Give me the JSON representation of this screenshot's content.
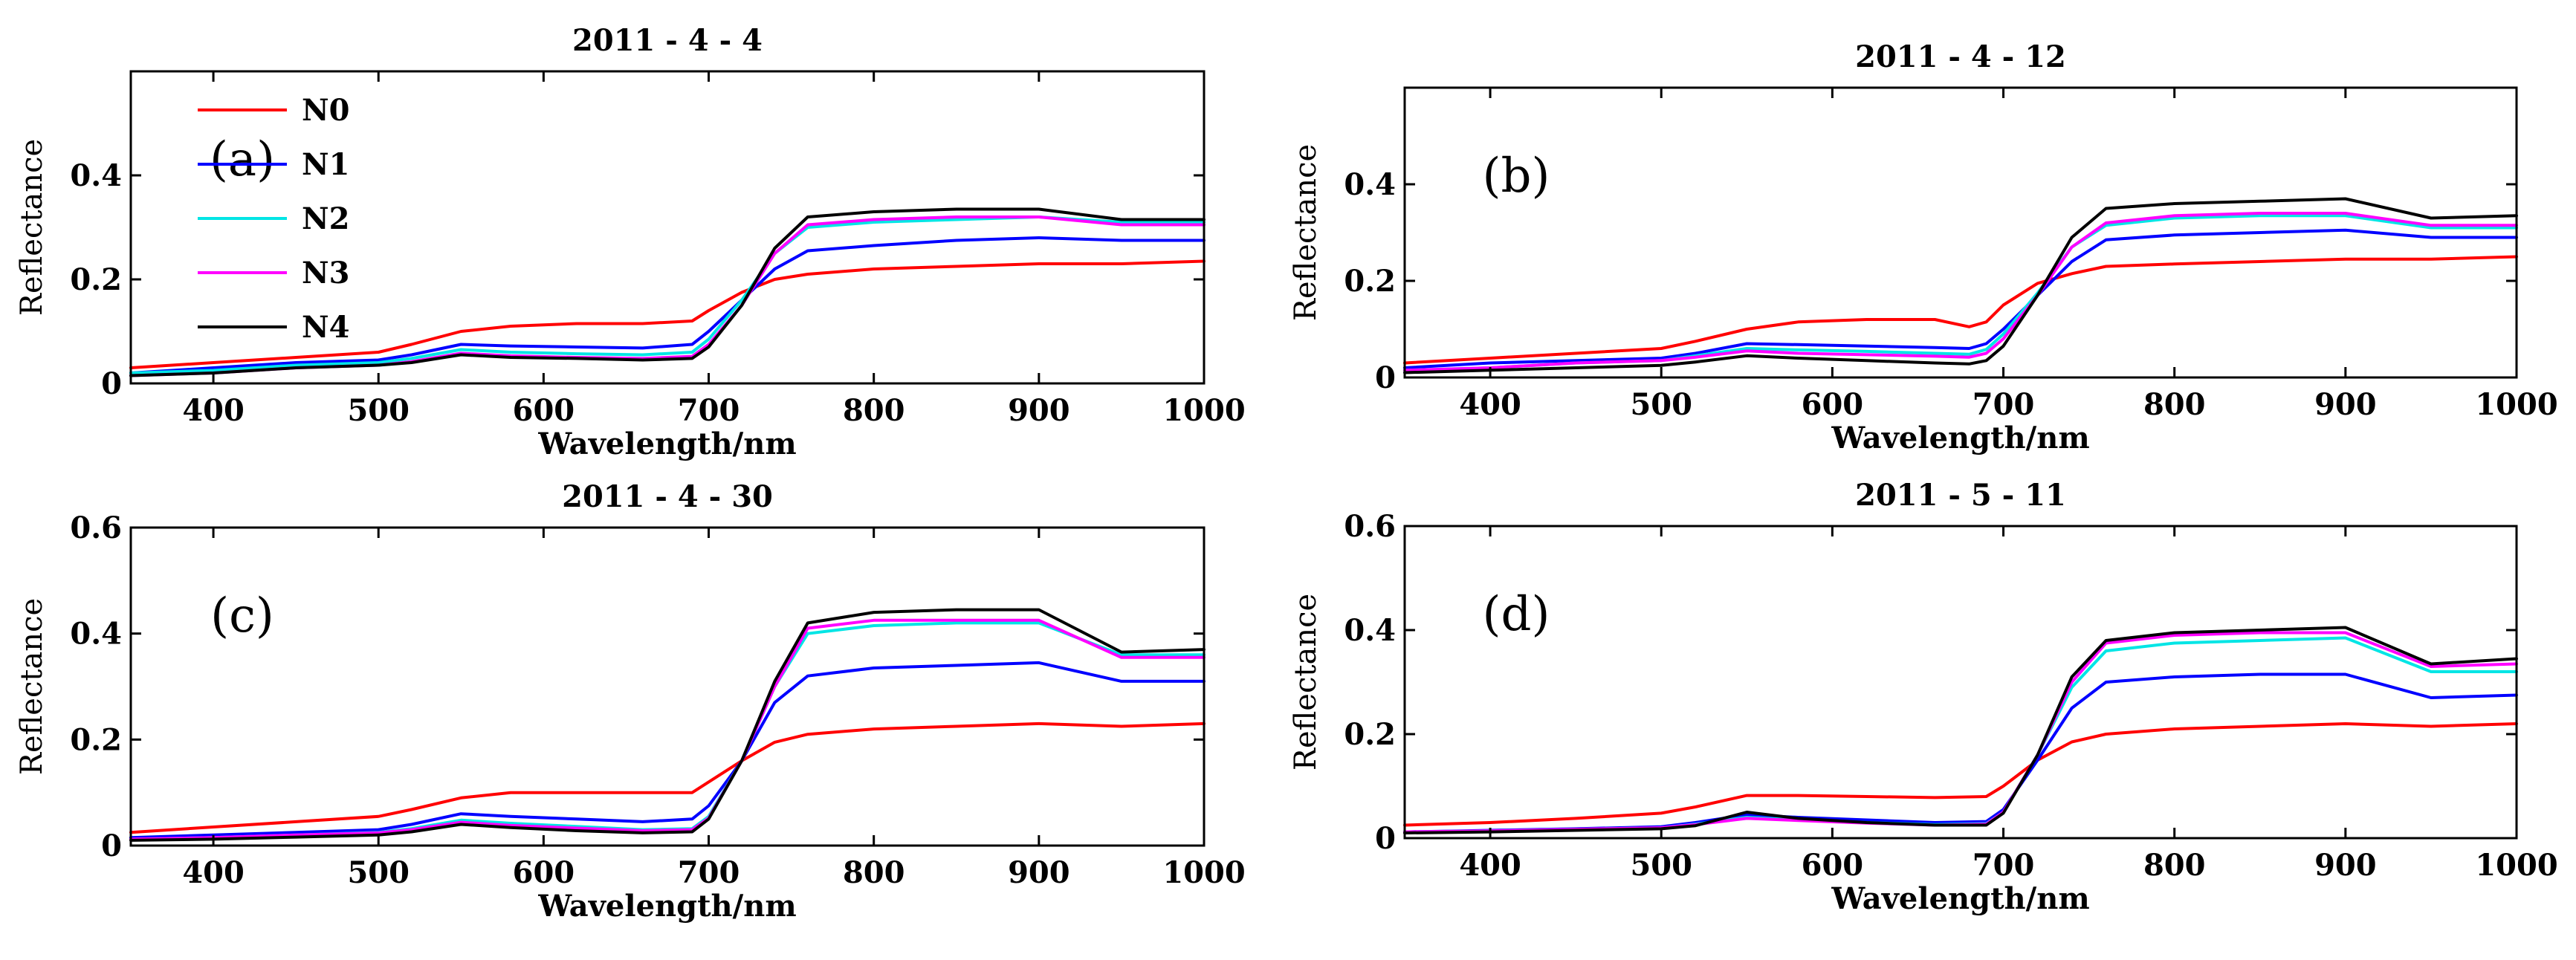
{
  "chart_data": [
    {
      "type": "line",
      "panel": "(a)",
      "title": "2011 - 4 - 4",
      "xlabel": "Wavelength/nm",
      "ylabel": "Reflectance",
      "xlim": [
        350,
        1000
      ],
      "ylim": [
        0,
        0.6
      ],
      "xticks": [
        400,
        500,
        600,
        700,
        800,
        900,
        1000
      ],
      "yticks": [
        0,
        0.2,
        0.4
      ],
      "ytick_labels": [
        "0",
        "0.2",
        "0.4"
      ],
      "legend": {
        "location": "top-left",
        "entries": [
          "N0",
          "N1",
          "N2",
          "N3",
          "N4"
        ]
      },
      "series": [
        {
          "name": "N0",
          "color": "#ff0000",
          "x": [
            350,
            400,
            450,
            500,
            520,
            550,
            580,
            620,
            660,
            690,
            700,
            720,
            740,
            760,
            800,
            850,
            900,
            950,
            1000
          ],
          "values": [
            0.03,
            0.04,
            0.05,
            0.06,
            0.075,
            0.1,
            0.11,
            0.115,
            0.115,
            0.12,
            0.14,
            0.175,
            0.2,
            0.21,
            0.22,
            0.225,
            0.23,
            0.23,
            0.235
          ]
        },
        {
          "name": "N1",
          "color": "#0000ff",
          "x": [
            350,
            400,
            450,
            500,
            520,
            550,
            580,
            620,
            660,
            690,
            700,
            720,
            740,
            760,
            800,
            850,
            900,
            950,
            1000
          ],
          "values": [
            0.02,
            0.03,
            0.04,
            0.045,
            0.055,
            0.075,
            0.072,
            0.07,
            0.068,
            0.075,
            0.1,
            0.16,
            0.22,
            0.255,
            0.265,
            0.275,
            0.28,
            0.275,
            0.275
          ]
        },
        {
          "name": "N2",
          "color": "#00e5e5",
          "x": [
            350,
            400,
            450,
            500,
            520,
            550,
            580,
            620,
            660,
            690,
            700,
            720,
            740,
            760,
            800,
            850,
            900,
            950,
            1000
          ],
          "values": [
            0.02,
            0.025,
            0.035,
            0.04,
            0.048,
            0.065,
            0.06,
            0.057,
            0.055,
            0.06,
            0.085,
            0.16,
            0.25,
            0.3,
            0.31,
            0.315,
            0.32,
            0.31,
            0.31
          ]
        },
        {
          "name": "N3",
          "color": "#ff00ff",
          "x": [
            350,
            400,
            450,
            500,
            520,
            550,
            580,
            620,
            660,
            690,
            700,
            720,
            740,
            760,
            800,
            850,
            900,
            950,
            1000
          ],
          "values": [
            0.015,
            0.02,
            0.03,
            0.035,
            0.042,
            0.058,
            0.053,
            0.05,
            0.048,
            0.052,
            0.075,
            0.15,
            0.25,
            0.305,
            0.315,
            0.32,
            0.32,
            0.305,
            0.305
          ]
        },
        {
          "name": "N4",
          "color": "#000000",
          "x": [
            350,
            400,
            450,
            500,
            520,
            550,
            580,
            620,
            660,
            690,
            700,
            720,
            740,
            760,
            800,
            850,
            900,
            950,
            1000
          ],
          "values": [
            0.015,
            0.02,
            0.03,
            0.035,
            0.04,
            0.055,
            0.05,
            0.048,
            0.045,
            0.048,
            0.07,
            0.15,
            0.26,
            0.32,
            0.33,
            0.335,
            0.335,
            0.315,
            0.315
          ]
        }
      ]
    },
    {
      "type": "line",
      "panel": "(b)",
      "title": "2011 - 4 - 12",
      "xlabel": "Wavelength/nm",
      "ylabel": "Reflectance",
      "xlim": [
        350,
        1000
      ],
      "ylim": [
        0,
        0.6
      ],
      "xticks": [
        400,
        500,
        600,
        700,
        800,
        900,
        1000
      ],
      "yticks": [
        0,
        0.2,
        0.4
      ],
      "ytick_labels": [
        "0",
        "0.2",
        "0.4"
      ],
      "series": [
        {
          "name": "N0",
          "color": "#ff0000",
          "x": [
            350,
            400,
            450,
            500,
            520,
            550,
            580,
            620,
            660,
            680,
            690,
            700,
            720,
            740,
            760,
            800,
            850,
            900,
            950,
            1000
          ],
          "values": [
            0.03,
            0.04,
            0.05,
            0.06,
            0.075,
            0.1,
            0.115,
            0.12,
            0.12,
            0.105,
            0.115,
            0.15,
            0.195,
            0.215,
            0.23,
            0.235,
            0.24,
            0.245,
            0.245,
            0.25
          ]
        },
        {
          "name": "N1",
          "color": "#0000ff",
          "x": [
            350,
            400,
            450,
            500,
            520,
            550,
            580,
            620,
            660,
            680,
            690,
            700,
            720,
            740,
            760,
            800,
            850,
            900,
            950,
            1000
          ],
          "values": [
            0.02,
            0.03,
            0.035,
            0.04,
            0.05,
            0.07,
            0.068,
            0.065,
            0.062,
            0.06,
            0.07,
            0.1,
            0.17,
            0.24,
            0.285,
            0.295,
            0.3,
            0.305,
            0.29,
            0.29
          ]
        },
        {
          "name": "N2",
          "color": "#00e5e5",
          "x": [
            350,
            400,
            450,
            500,
            520,
            550,
            580,
            620,
            660,
            680,
            690,
            700,
            720,
            740,
            760,
            800,
            850,
            900,
            950,
            1000
          ],
          "values": [
            0.015,
            0.02,
            0.03,
            0.035,
            0.045,
            0.06,
            0.057,
            0.054,
            0.05,
            0.048,
            0.058,
            0.09,
            0.175,
            0.27,
            0.315,
            0.33,
            0.335,
            0.335,
            0.31,
            0.31
          ]
        },
        {
          "name": "N3",
          "color": "#ff00ff",
          "x": [
            350,
            400,
            450,
            500,
            520,
            550,
            580,
            620,
            660,
            680,
            690,
            700,
            720,
            740,
            760,
            800,
            850,
            900,
            950,
            1000
          ],
          "values": [
            0.015,
            0.02,
            0.03,
            0.035,
            0.042,
            0.055,
            0.05,
            0.047,
            0.044,
            0.042,
            0.05,
            0.08,
            0.17,
            0.27,
            0.32,
            0.335,
            0.34,
            0.34,
            0.315,
            0.315
          ]
        },
        {
          "name": "N4",
          "color": "#000000",
          "x": [
            350,
            400,
            450,
            500,
            520,
            550,
            580,
            620,
            660,
            680,
            690,
            700,
            720,
            740,
            760,
            800,
            850,
            900,
            950,
            1000
          ],
          "values": [
            0.01,
            0.015,
            0.02,
            0.025,
            0.032,
            0.045,
            0.04,
            0.035,
            0.03,
            0.028,
            0.035,
            0.065,
            0.17,
            0.29,
            0.35,
            0.36,
            0.365,
            0.37,
            0.33,
            0.335
          ]
        }
      ]
    },
    {
      "type": "line",
      "panel": "(c)",
      "title": "2011 - 4 - 30",
      "xlabel": "Wavelength/nm",
      "ylabel": "Reflectance",
      "xlim": [
        350,
        1000
      ],
      "ylim": [
        0,
        0.6
      ],
      "xticks": [
        400,
        500,
        600,
        700,
        800,
        900,
        1000
      ],
      "yticks": [
        0,
        0.2,
        0.4,
        0.6
      ],
      "ytick_labels": [
        "0",
        "0.2",
        "0.4",
        "0.6"
      ],
      "series": [
        {
          "name": "N0",
          "color": "#ff0000",
          "x": [
            350,
            400,
            450,
            500,
            520,
            550,
            580,
            620,
            660,
            690,
            700,
            720,
            740,
            760,
            800,
            850,
            900,
            950,
            1000
          ],
          "values": [
            0.025,
            0.035,
            0.045,
            0.055,
            0.068,
            0.09,
            0.1,
            0.1,
            0.1,
            0.1,
            0.12,
            0.16,
            0.195,
            0.21,
            0.22,
            0.225,
            0.23,
            0.225,
            0.23
          ]
        },
        {
          "name": "N1",
          "color": "#0000ff",
          "x": [
            350,
            400,
            450,
            500,
            520,
            550,
            580,
            620,
            660,
            690,
            700,
            720,
            740,
            760,
            800,
            850,
            900,
            950,
            1000
          ],
          "values": [
            0.015,
            0.02,
            0.025,
            0.03,
            0.04,
            0.06,
            0.055,
            0.05,
            0.045,
            0.05,
            0.075,
            0.16,
            0.27,
            0.32,
            0.335,
            0.34,
            0.345,
            0.31,
            0.31
          ]
        },
        {
          "name": "N2",
          "color": "#00e5e5",
          "x": [
            350,
            400,
            450,
            500,
            520,
            550,
            580,
            620,
            660,
            690,
            700,
            720,
            740,
            760,
            800,
            850,
            900,
            950,
            1000
          ],
          "values": [
            0.012,
            0.015,
            0.02,
            0.025,
            0.032,
            0.048,
            0.042,
            0.036,
            0.03,
            0.032,
            0.055,
            0.16,
            0.3,
            0.4,
            0.415,
            0.42,
            0.42,
            0.36,
            0.36
          ]
        },
        {
          "name": "N3",
          "color": "#ff00ff",
          "x": [
            350,
            400,
            450,
            500,
            520,
            550,
            580,
            620,
            660,
            690,
            700,
            720,
            740,
            760,
            800,
            850,
            900,
            950,
            1000
          ],
          "values": [
            0.012,
            0.015,
            0.02,
            0.024,
            0.03,
            0.044,
            0.038,
            0.033,
            0.028,
            0.03,
            0.052,
            0.16,
            0.3,
            0.41,
            0.425,
            0.425,
            0.425,
            0.355,
            0.355
          ]
        },
        {
          "name": "N4",
          "color": "#000000",
          "x": [
            350,
            400,
            450,
            500,
            520,
            550,
            580,
            620,
            660,
            690,
            700,
            720,
            740,
            760,
            800,
            850,
            900,
            950,
            1000
          ],
          "values": [
            0.01,
            0.012,
            0.016,
            0.02,
            0.026,
            0.04,
            0.034,
            0.028,
            0.024,
            0.026,
            0.05,
            0.16,
            0.31,
            0.42,
            0.44,
            0.445,
            0.445,
            0.365,
            0.37
          ]
        }
      ]
    },
    {
      "type": "line",
      "panel": "(d)",
      "title": "2011 - 5 - 11",
      "xlabel": "Wavelength/nm",
      "ylabel": "Reflectance",
      "xlim": [
        350,
        1000
      ],
      "ylim": [
        0,
        0.6
      ],
      "xticks": [
        400,
        500,
        600,
        700,
        800,
        900,
        1000
      ],
      "yticks": [
        0,
        0.2,
        0.4,
        0.6
      ],
      "ytick_labels": [
        "0",
        "0.2",
        "0.4",
        "0.6"
      ],
      "series": [
        {
          "name": "N0",
          "color": "#ff0000",
          "x": [
            350,
            400,
            450,
            500,
            520,
            550,
            580,
            620,
            660,
            690,
            700,
            720,
            740,
            760,
            800,
            850,
            900,
            950,
            1000
          ],
          "values": [
            0.025,
            0.03,
            0.038,
            0.048,
            0.06,
            0.082,
            0.082,
            0.08,
            0.078,
            0.08,
            0.1,
            0.15,
            0.185,
            0.2,
            0.21,
            0.215,
            0.22,
            0.215,
            0.22
          ]
        },
        {
          "name": "N1",
          "color": "#0000ff",
          "x": [
            350,
            400,
            450,
            500,
            520,
            550,
            580,
            620,
            660,
            690,
            700,
            720,
            740,
            760,
            800,
            850,
            900,
            950,
            1000
          ],
          "values": [
            0.012,
            0.015,
            0.018,
            0.022,
            0.03,
            0.045,
            0.04,
            0.035,
            0.03,
            0.032,
            0.055,
            0.15,
            0.25,
            0.3,
            0.31,
            0.315,
            0.315,
            0.27,
            0.275
          ]
        },
        {
          "name": "N2",
          "color": "#00e5e5",
          "x": [
            350,
            400,
            450,
            500,
            520,
            550,
            580,
            620,
            660,
            690,
            700,
            720,
            740,
            760,
            800,
            850,
            900,
            950,
            1000
          ],
          "values": [
            0.012,
            0.014,
            0.017,
            0.02,
            0.027,
            0.04,
            0.035,
            0.03,
            0.026,
            0.028,
            0.05,
            0.16,
            0.29,
            0.36,
            0.375,
            0.38,
            0.385,
            0.32,
            0.32
          ]
        },
        {
          "name": "N3",
          "color": "#ff00ff",
          "x": [
            350,
            400,
            450,
            500,
            520,
            550,
            580,
            620,
            660,
            690,
            700,
            720,
            740,
            760,
            800,
            850,
            900,
            950,
            1000
          ],
          "values": [
            0.012,
            0.014,
            0.017,
            0.02,
            0.026,
            0.038,
            0.034,
            0.029,
            0.025,
            0.027,
            0.05,
            0.16,
            0.3,
            0.375,
            0.39,
            0.395,
            0.395,
            0.33,
            0.335
          ]
        },
        {
          "name": "N4",
          "color": "#000000",
          "x": [
            350,
            400,
            450,
            500,
            520,
            550,
            580,
            620,
            660,
            690,
            700,
            720,
            740,
            760,
            800,
            850,
            900,
            950,
            1000
          ],
          "values": [
            0.01,
            0.012,
            0.015,
            0.018,
            0.024,
            0.05,
            0.038,
            0.03,
            0.025,
            0.025,
            0.048,
            0.16,
            0.31,
            0.38,
            0.395,
            0.4,
            0.405,
            0.335,
            0.345
          ]
        }
      ]
    }
  ]
}
